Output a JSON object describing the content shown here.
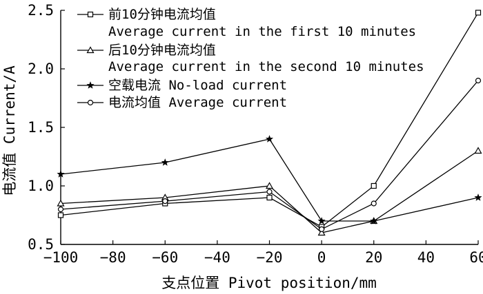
{
  "chart_data": {
    "type": "line",
    "xlabel": "支点位置 Pivot position/mm",
    "ylabel": "电流值 Current/A",
    "xlim": [
      -100,
      60
    ],
    "ylim": [
      0.5,
      2.5
    ],
    "xticks": [
      -100,
      -80,
      -60,
      -40,
      -20,
      0,
      20,
      40,
      60
    ],
    "yticks": [
      0.5,
      1.0,
      1.5,
      2.0,
      2.5
    ],
    "xtick_labels": [
      "−100",
      "−80",
      "−60",
      "−40",
      "−20",
      "0",
      "20",
      "40",
      "60"
    ],
    "ytick_labels": [
      "0.5",
      "1.0",
      "1.5",
      "2.0",
      "2.5"
    ],
    "grid": false,
    "legend_position": "top-left",
    "series": [
      {
        "name_cn": "前10分钟电流均值",
        "name_en": "Average current in the first 10 minutes",
        "marker": "square",
        "x": [
          -100,
          -60,
          -20,
          0,
          20,
          60
        ],
        "y": [
          0.75,
          0.85,
          0.9,
          0.65,
          1.0,
          2.48
        ]
      },
      {
        "name_cn": "后10分钟电流均值",
        "name_en": "Average current in the second 10 minutes",
        "marker": "triangle",
        "x": [
          -100,
          -60,
          -20,
          0,
          20,
          60
        ],
        "y": [
          0.85,
          0.9,
          1.0,
          0.6,
          0.7,
          1.3
        ]
      },
      {
        "name_cn": "空载电流 No-load current",
        "name_en": "",
        "marker": "star",
        "x": [
          -100,
          -60,
          -20,
          0,
          20,
          60
        ],
        "y": [
          1.1,
          1.2,
          1.4,
          0.7,
          0.7,
          0.9
        ]
      },
      {
        "name_cn": "电流均值 Average current",
        "name_en": "",
        "marker": "circle",
        "x": [
          -100,
          -60,
          -20,
          0,
          20,
          60
        ],
        "y": [
          0.8,
          0.87,
          0.95,
          0.63,
          0.85,
          1.9
        ]
      }
    ]
  }
}
